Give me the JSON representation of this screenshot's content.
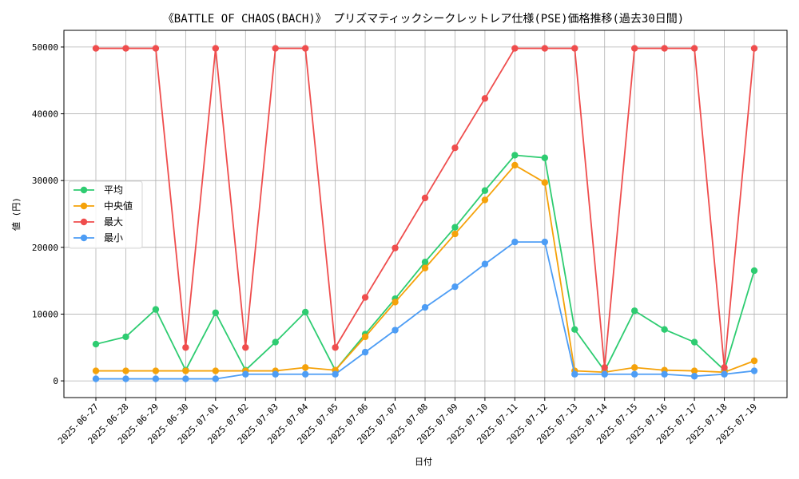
{
  "chart_data": {
    "type": "line",
    "title": "《BATTLE OF CHAOS(BACH)》 プリズマティックシークレットレア仕様(PSE)価格推移(過去30日間)",
    "xlabel": "日付",
    "ylabel": "値 (円)",
    "ylim": [
      -2500,
      52500
    ],
    "yticks": [
      0,
      10000,
      20000,
      30000,
      40000,
      50000
    ],
    "grid": true,
    "legend_position": "center-left",
    "categories": [
      "2025-06-27",
      "2025-06-28",
      "2025-06-29",
      "2025-06-30",
      "2025-07-01",
      "2025-07-02",
      "2025-07-03",
      "2025-07-04",
      "2025-07-05",
      "2025-07-06",
      "2025-07-07",
      "2025-07-08",
      "2025-07-09",
      "2025-07-10",
      "2025-07-11",
      "2025-07-12",
      "2025-07-13",
      "2025-07-14",
      "2025-07-15",
      "2025-07-16",
      "2025-07-17",
      "2025-07-18",
      "2025-07-19"
    ],
    "series": [
      {
        "name": "平均",
        "color": "#2ecc71",
        "values": [
          5500,
          6600,
          10700,
          1600,
          10200,
          1600,
          5800,
          10300,
          1600,
          7000,
          12300,
          17800,
          23000,
          28500,
          33800,
          33400,
          7700,
          1500,
          10500,
          7700,
          5800,
          1600,
          16500
        ]
      },
      {
        "name": "中央値",
        "color": "#f5a20a",
        "values": [
          1500,
          1500,
          1500,
          1500,
          1500,
          1500,
          1500,
          2000,
          1600,
          6600,
          11800,
          16900,
          22000,
          27100,
          32300,
          29700,
          1500,
          1300,
          2000,
          1600,
          1500,
          1300,
          3000
        ]
      },
      {
        "name": "最大",
        "color": "#ef4d4d",
        "values": [
          49800,
          49800,
          49800,
          5000,
          49800,
          5000,
          49800,
          49800,
          5000,
          12500,
          19900,
          27400,
          34900,
          42300,
          49800,
          49800,
          49800,
          2000,
          49800,
          49800,
          49800,
          2000,
          49800
        ]
      },
      {
        "name": "最小",
        "color": "#4d9df5",
        "values": [
          300,
          300,
          300,
          300,
          300,
          1000,
          1000,
          1000,
          1000,
          4300,
          7600,
          11000,
          14100,
          17500,
          20800,
          20800,
          1000,
          1000,
          1000,
          1000,
          700,
          1000,
          1500
        ]
      }
    ]
  }
}
